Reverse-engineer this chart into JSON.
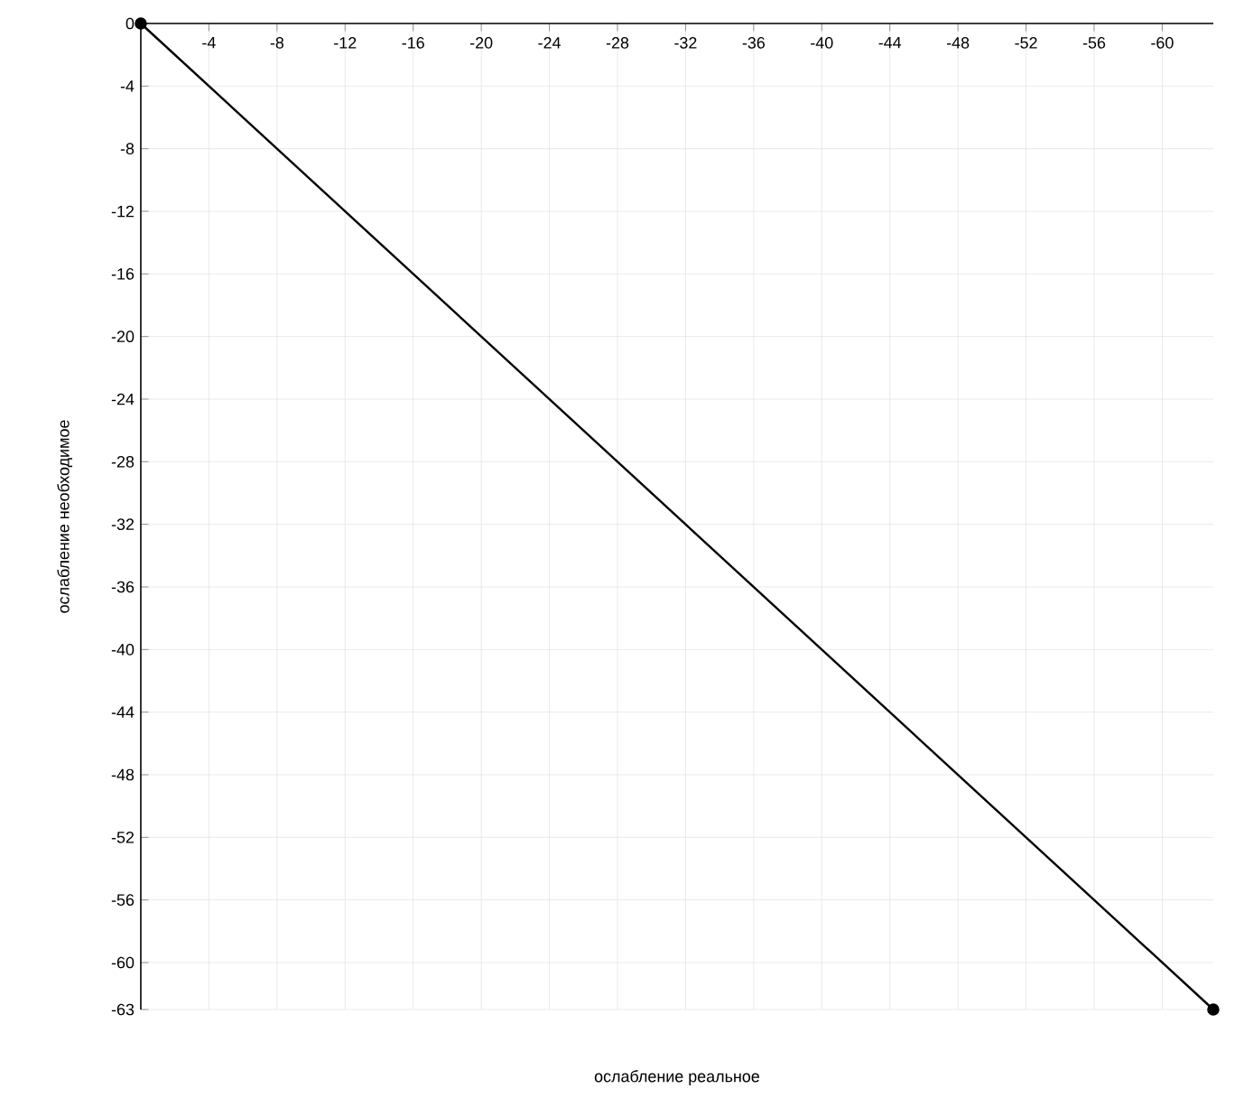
{
  "chart_data": {
    "type": "line",
    "xlabel": "ослабление реальное",
    "ylabel": "ослабление необходимое",
    "x": [
      0,
      -63
    ],
    "series": [
      {
        "color": "#000000",
        "values": [
          0,
          -63
        ]
      }
    ],
    "xlim": [
      0,
      -63
    ],
    "ylim": [
      -63,
      0
    ],
    "xticks": [
      -4,
      -8,
      -12,
      -16,
      -20,
      -24,
      -28,
      -32,
      -36,
      -40,
      -44,
      -48,
      -52,
      -56,
      -60
    ],
    "yticks": [
      0,
      -4,
      -8,
      -12,
      -16,
      -20,
      -24,
      -28,
      -32,
      -36,
      -40,
      -44,
      -48,
      -52,
      -56,
      -60,
      -63
    ],
    "grid": true,
    "marker": "circle",
    "line_style": "solid"
  }
}
